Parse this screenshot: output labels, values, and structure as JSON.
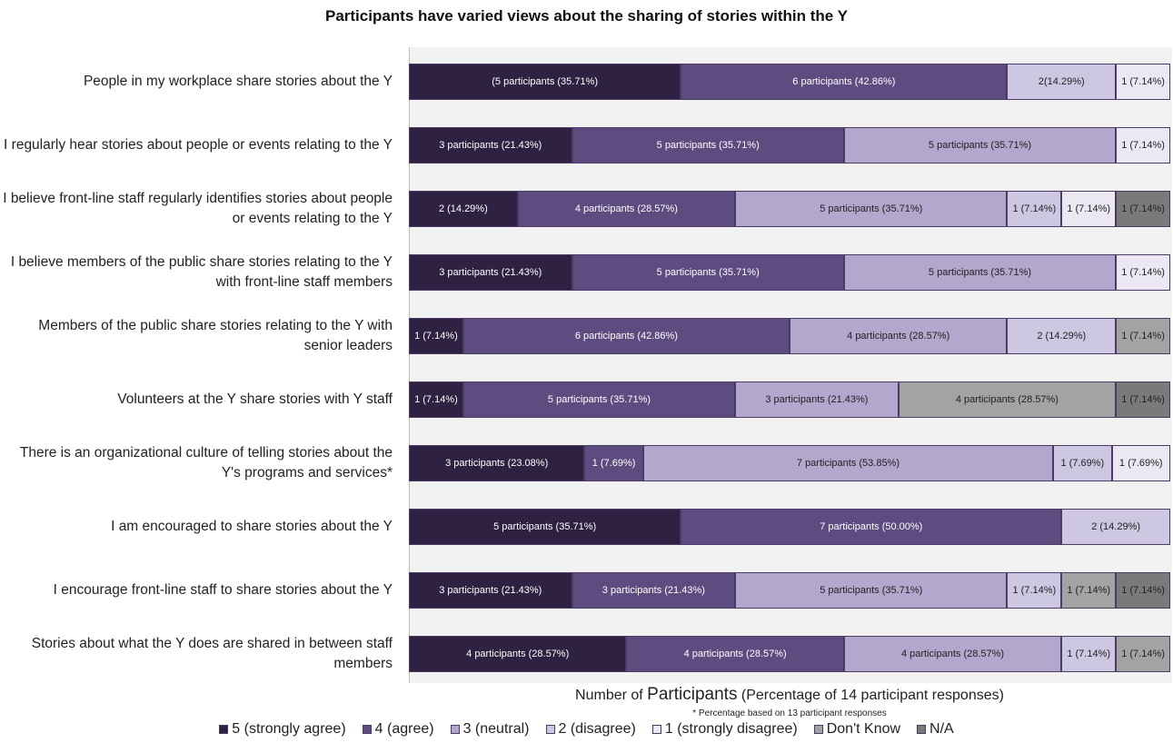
{
  "chart_data": {
    "type": "bar",
    "orientation": "horizontal",
    "stacked": true,
    "title": "Participants have varied views about the sharing of stories within the Y",
    "xlabel_prefix": "Number of ",
    "xlabel_big": "Participants",
    "xlabel_suffix": " (Percentage of 14 participant responses)",
    "footnote": "* Percentage based on 13 participant responses",
    "categories": [
      "People in my workplace share stories about the Y",
      "I regularly hear stories about people or events relating to the Y",
      "I believe front-line staff regularly identifies stories about people or events relating to the Y",
      "I believe members of the public share stories relating to the Y with front-line staff members",
      "Members of the public share stories relating to the Y with senior leaders",
      "Volunteers at the Y share stories with Y staff",
      "There is an organizational culture of telling stories about the Y's programs and services*",
      "I am encouraged to share stories about the Y",
      "I encourage front-line staff to share stories about the Y",
      "Stories about what the Y does are shared in between staff members"
    ],
    "series": [
      {
        "name": "5 (strongly agree)",
        "color": "#2e2141",
        "text_color": "#ffffff",
        "values": [
          5,
          3,
          2,
          3,
          1,
          1,
          3,
          5,
          3,
          4
        ]
      },
      {
        "name": "4 (agree)",
        "color": "#5e4b80",
        "text_color": "#ffffff",
        "values": [
          6,
          5,
          4,
          5,
          6,
          5,
          1,
          7,
          3,
          4
        ]
      },
      {
        "name": "3 (neutral)",
        "color": "#b2a7cc",
        "text_color": "#222222",
        "values": [
          0,
          5,
          5,
          5,
          4,
          3,
          7,
          0,
          5,
          4
        ]
      },
      {
        "name": "2 (disagree)",
        "color": "#cec7e2",
        "text_color": "#222222",
        "values": [
          2,
          0,
          1,
          0,
          2,
          0,
          1,
          2,
          1,
          1
        ]
      },
      {
        "name": "1 (strongly disagree)",
        "color": "#ebe8f3",
        "text_color": "#222222",
        "values": [
          1,
          1,
          1,
          1,
          0,
          0,
          1,
          0,
          0,
          0
        ]
      },
      {
        "name": "Don't Know",
        "color": "#a3a3a3",
        "text_color": "#222222",
        "values": [
          0,
          0,
          0,
          0,
          1,
          4,
          0,
          0,
          1,
          1
        ]
      },
      {
        "name": "N/A",
        "color": "#7a7a7a",
        "text_color": "#222222",
        "values": [
          0,
          0,
          1,
          0,
          0,
          1,
          0,
          0,
          1,
          0
        ]
      }
    ],
    "data_labels": [
      [
        "(5 participants (35.71%)",
        "6 participants (42.86%)",
        "",
        "2(14.29%)",
        "1 (7.14%)",
        "",
        ""
      ],
      [
        "3 participants (21.43%)",
        "5 participants (35.71%)",
        "5 participants (35.71%)",
        "",
        "1 (7.14%)",
        "",
        ""
      ],
      [
        "2 (14.29%)",
        "4 participants (28.57%)",
        "5 participants (35.71%)",
        "1 (7.14%)",
        "1 (7.14%)",
        "",
        "1 (7.14%)"
      ],
      [
        "3 participants (21.43%)",
        "5 participants (35.71%)",
        "5 participants (35.71%)",
        "",
        "1 (7.14%)",
        "",
        ""
      ],
      [
        "1 (7.14%)",
        "6 participants (42.86%)",
        "4 participants (28.57%)",
        "2 (14.29%)",
        "",
        "1 (7.14%)",
        ""
      ],
      [
        "1 (7.14%)",
        "5 participants (35.71%)",
        "3 participants (21.43%)",
        "",
        "",
        "4 participants (28.57%)",
        "1 (7.14%)"
      ],
      [
        "3 participants (23.08%)",
        "1 (7.69%)",
        "7 participants (53.85%)",
        "1 (7.69%)",
        "1 (7.69%)",
        "",
        ""
      ],
      [
        "5 participants (35.71%)",
        "7 participants (50.00%)",
        "",
        "2 (14.29%)",
        "",
        "",
        ""
      ],
      [
        "3 participants (21.43%)",
        "3 participants (21.43%)",
        "5 participants (35.71%)",
        "1 (7.14%)",
        "",
        "1 (7.14%)",
        "1 (7.14%)"
      ],
      [
        "4 participants (28.57%)",
        "4 participants (28.57%)",
        "4 participants (28.57%)",
        "1 (7.14%)",
        "",
        "1 (7.14%)",
        ""
      ]
    ],
    "row_totals": [
      14,
      14,
      14,
      14,
      14,
      14,
      13,
      14,
      14,
      14
    ],
    "legend_position": "bottom",
    "grid": false
  }
}
